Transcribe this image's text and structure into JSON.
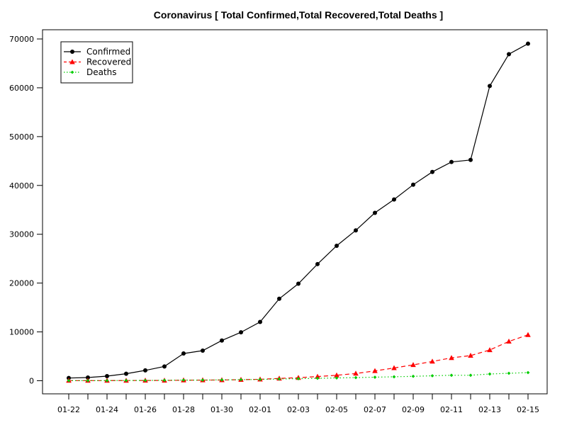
{
  "chart_data": {
    "type": "line",
    "title": "Coronavirus [ Total Confirmed,Total Recovered,Total Deaths ]",
    "xlabel": "",
    "ylabel": "",
    "x": [
      "01-22",
      "01-23",
      "01-24",
      "01-25",
      "01-26",
      "01-27",
      "01-28",
      "01-29",
      "01-30",
      "01-31",
      "02-01",
      "02-02",
      "02-03",
      "02-04",
      "02-05",
      "02-06",
      "02-07",
      "02-08",
      "02-09",
      "02-10",
      "02-11",
      "02-12",
      "02-13",
      "02-14",
      "02-15"
    ],
    "x_tick_labels": [
      "01-22",
      "01-24",
      "01-26",
      "01-28",
      "01-30",
      "02-01",
      "02-03",
      "02-05",
      "02-07",
      "02-09",
      "02-11",
      "02-13",
      "02-15"
    ],
    "y_ticks": [
      0,
      10000,
      20000,
      30000,
      40000,
      50000,
      60000,
      70000
    ],
    "y_tick_labels": [
      "0",
      "10000",
      "20000",
      "30000",
      "40000",
      "50000",
      "60000",
      "70000"
    ],
    "ylim": [
      0,
      70000
    ],
    "grid": false,
    "legend_position": "top-left",
    "series": [
      {
        "name": "Confirmed",
        "color": "#000000",
        "line_style": "solid",
        "marker": "circle",
        "values": [
          555,
          654,
          941,
          1434,
          2118,
          2927,
          5578,
          6166,
          8234,
          9927,
          12038,
          16787,
          19881,
          23892,
          27635,
          30794,
          34391,
          37120,
          40150,
          42762,
          44802,
          45221,
          60368,
          66885,
          69030
        ]
      },
      {
        "name": "Recovered",
        "color": "#ff0000",
        "line_style": "dashed",
        "marker": "triangle",
        "values": [
          28,
          30,
          36,
          39,
          52,
          61,
          107,
          126,
          143,
          222,
          284,
          472,
          623,
          852,
          1124,
          1487,
          2011,
          2616,
          3244,
          3946,
          4683,
          5150,
          6295,
          8058,
          9395
        ]
      },
      {
        "name": "Deaths",
        "color": "#00cd00",
        "line_style": "dotted",
        "marker": "diamond",
        "values": [
          17,
          18,
          26,
          42,
          56,
          82,
          131,
          133,
          171,
          213,
          259,
          362,
          426,
          492,
          564,
          634,
          719,
          806,
          906,
          1013,
          1113,
          1118,
          1371,
          1523,
          1666
        ]
      }
    ]
  }
}
